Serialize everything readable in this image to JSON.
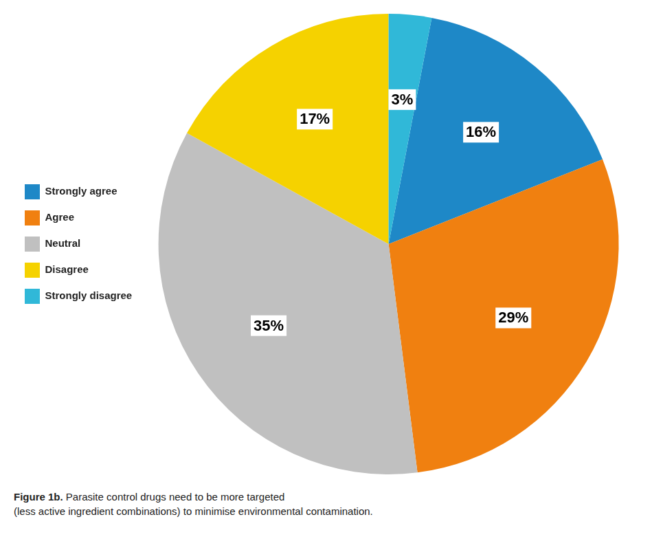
{
  "chart_data": {
    "type": "pie",
    "categories": [
      "Strongly agree",
      "Agree",
      "Neutral",
      "Disagree",
      "Strongly disagree"
    ],
    "values": [
      16,
      29,
      35,
      17,
      3
    ],
    "value_labels": [
      "16%",
      "29%",
      "35%",
      "17%",
      "3%"
    ],
    "colors": [
      "#1e88c7",
      "#f08010",
      "#c0c0c0",
      "#f5d200",
      "#30b8d8"
    ],
    "data_labels": true,
    "legend": "left",
    "annotations": [
      "Figure 1b.",
      " Parasite control drugs need to be more targeted\n(less active ingredient combinations) to minimise environmental contamination."
    ]
  }
}
